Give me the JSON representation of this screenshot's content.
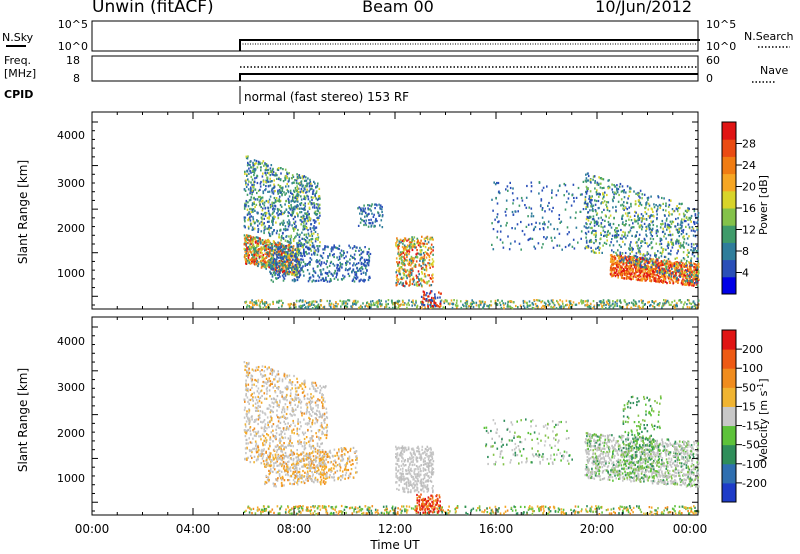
{
  "header": {
    "station": "Unwin (fitACF)",
    "beam": "Beam 00",
    "date": "10/Jun/2012"
  },
  "noise_panel": {
    "left_label": "N.Sky",
    "right_label": "N.Search",
    "ticks_left": [
      "10^5",
      "10^0"
    ],
    "ticks_right": [
      "10^5",
      "10^0"
    ]
  },
  "freq_panel": {
    "left_label_1": "Freq.",
    "left_label_2": "[MHz]",
    "right_label": "Nave",
    "ticks_left": [
      "18",
      "8"
    ],
    "ticks_right": [
      "60",
      "0"
    ]
  },
  "cpid": {
    "label": "CPID",
    "program": "normal (fast stereo) 153 RF"
  },
  "chart_data": [
    {
      "type": "heatmap",
      "title": "",
      "xlabel": "",
      "ylabel": "Slant Range [km]",
      "xlim": [
        0,
        24
      ],
      "ylim": [
        180,
        4500
      ],
      "yticks": [
        "4000",
        "3000",
        "2000",
        "1000"
      ],
      "colorbar": {
        "label": "Power [dB]",
        "ticks": [
          "28",
          "24",
          "20",
          "16",
          "12",
          "8",
          "4"
        ],
        "colors": [
          "#0000e6",
          "#2a4fb8",
          "#2f7d9b",
          "#3f9b6a",
          "#84c24a",
          "#d8d42a",
          "#f6a623",
          "#f07c12",
          "#ea4b12",
          "#e01414"
        ]
      },
      "data_start_hour": 6.0
    },
    {
      "type": "heatmap",
      "title": "",
      "xlabel": "Time UT",
      "ylabel": "Slant Range [km]",
      "xlim": [
        0,
        24
      ],
      "ylim": [
        180,
        4500
      ],
      "yticks": [
        "4000",
        "3000",
        "2000",
        "1000"
      ],
      "xticks": [
        "00:00",
        "04:00",
        "08:00",
        "12:00",
        "16:00",
        "20:00",
        "00:00"
      ],
      "colorbar": {
        "label_1": "Velocity",
        "label_2": "[m s",
        "label_sup": "-1",
        "label_3": "]",
        "ticks": [
          "200",
          "100",
          "50",
          "15",
          "-15",
          "-50",
          "-100",
          "-200"
        ],
        "colors": [
          "#1e3cc8",
          "#2f6fb0",
          "#2f8e5a",
          "#5dc23a",
          "#c8c8c8",
          "#f0b432",
          "#f08c1e",
          "#ee5a14",
          "#e01414"
        ]
      },
      "data_start_hour": 6.0
    }
  ]
}
